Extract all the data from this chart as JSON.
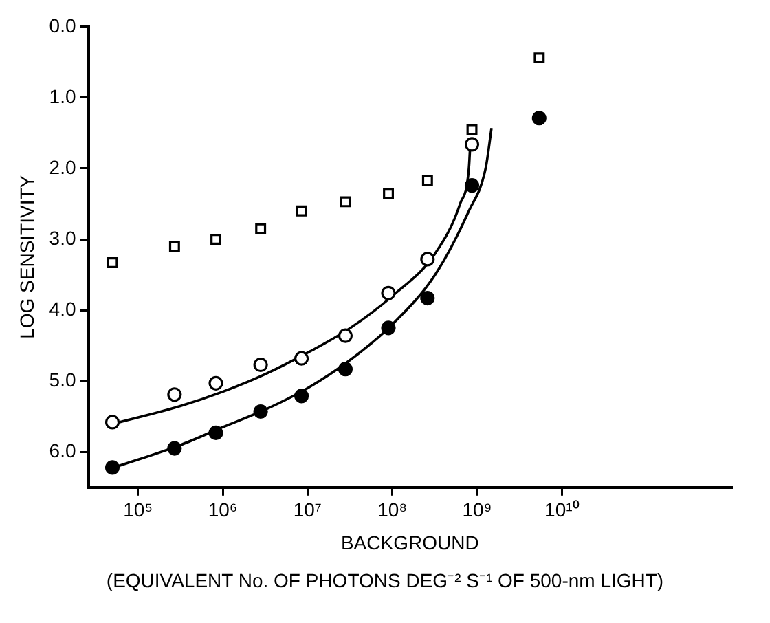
{
  "chart_data": {
    "type": "scatter",
    "xlabel": "BACKGROUND",
    "ylabel": "LOG SENSITIVITY",
    "annotations": [
      "(EQUIVALENT No. OF PHOTONS DEG⁻² S⁻¹ OF 500-nm LIGHT)"
    ],
    "log": "x",
    "grid": false,
    "legend": false,
    "xlim": [
      26000,
      1000000000000
    ],
    "xticks": [
      {
        "value": 100000,
        "label": "10⁵"
      },
      {
        "value": 1000000,
        "label": "10⁶"
      },
      {
        "value": 10000000,
        "label": "10⁷"
      },
      {
        "value": 100000000,
        "label": "10⁸"
      },
      {
        "value": 1000000000,
        "label": "10⁹"
      },
      {
        "value": 10000000000,
        "label": "10¹⁰"
      }
    ],
    "ylim": [
      6.5,
      0
    ],
    "yticks": [
      {
        "value": 0,
        "label": "0.0"
      },
      {
        "value": 1,
        "label": "1.0"
      },
      {
        "value": 2,
        "label": "2.0"
      },
      {
        "value": 3,
        "label": "3.0"
      },
      {
        "value": 4,
        "label": "4.0"
      },
      {
        "value": 5,
        "label": "5.0"
      },
      {
        "value": 6,
        "label": "6.0"
      }
    ],
    "series": [
      {
        "type": "scatter",
        "marker": "square",
        "color": "#000000",
        "x": [
          50000,
          270000,
          830000,
          2800000,
          8500000,
          28000000,
          90000000,
          260000000,
          870000000,
          5400000000
        ],
        "values": [
          3.33,
          3.1,
          3.0,
          2.85,
          2.6,
          2.47,
          2.36,
          2.17,
          1.45,
          0.44
        ]
      },
      {
        "type": "scatter",
        "marker": "circle",
        "color": "#000000",
        "x": [
          50000,
          270000,
          830000,
          2800000,
          8500000,
          28000000,
          90000000,
          260000000,
          870000000
        ],
        "values": [
          5.58,
          5.19,
          5.03,
          4.77,
          4.68,
          4.36,
          3.76,
          3.28,
          1.66
        ]
      },
      {
        "type": "scatter",
        "marker": "circle",
        "color": "#000000",
        "x": [
          50000,
          270000,
          830000,
          2800000,
          8500000,
          28000000,
          90000000,
          260000000,
          870000000,
          5400000000
        ],
        "values": [
          6.22,
          5.95,
          5.73,
          5.43,
          5.21,
          4.83,
          4.25,
          3.83,
          2.24,
          1.29
        ]
      },
      {
        "type": "line",
        "marker": "none",
        "line_style": "solid",
        "color": "#000000",
        "x": [
          52000,
          320000,
          1000000,
          3200000,
          10000000,
          32000000,
          100000000,
          320000000,
          630000000,
          800000000,
          830000000
        ],
        "values": [
          5.6,
          5.35,
          5.15,
          4.9,
          4.6,
          4.25,
          3.8,
          3.2,
          2.5,
          2.0,
          1.66
        ]
      },
      {
        "type": "line",
        "marker": "none",
        "line_style": "solid",
        "color": "#000000",
        "x": [
          52000,
          320000,
          1000000,
          3200000,
          10000000,
          32000000,
          100000000,
          320000000,
          800000000,
          1260000000,
          1480000000
        ],
        "values": [
          6.22,
          5.9,
          5.65,
          5.4,
          5.1,
          4.7,
          4.2,
          3.5,
          2.6,
          2.0,
          1.43
        ]
      }
    ]
  }
}
